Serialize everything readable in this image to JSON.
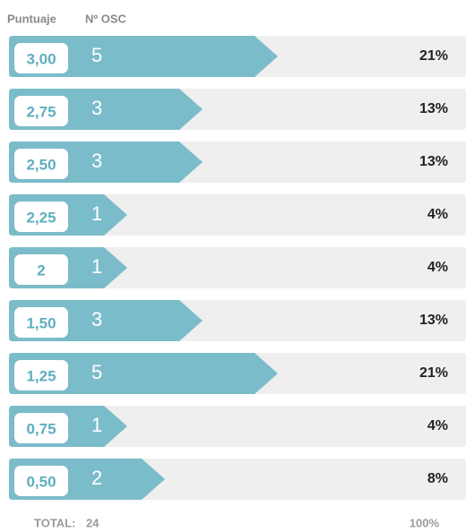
{
  "chart_data": {
    "type": "bar",
    "column_headers": [
      "Puntuaje",
      "Nº OSC"
    ],
    "categories": [
      "3,00",
      "2,75",
      "2,50",
      "2,25",
      "2",
      "1,50",
      "1,25",
      "0,75",
      "0,50"
    ],
    "values": [
      5,
      3,
      3,
      1,
      1,
      3,
      5,
      1,
      2
    ],
    "color": "#7bbcca",
    "shares": [
      21,
      13,
      13,
      4,
      4,
      13,
      21,
      4,
      8
    ],
    "share_labels": [
      "21%",
      "13%",
      "13%",
      "4%",
      "4%",
      "13%",
      "21%",
      "4%",
      "8%"
    ],
    "total_label": "TOTAL:",
    "total": 24,
    "total_share_label": "100%"
  }
}
